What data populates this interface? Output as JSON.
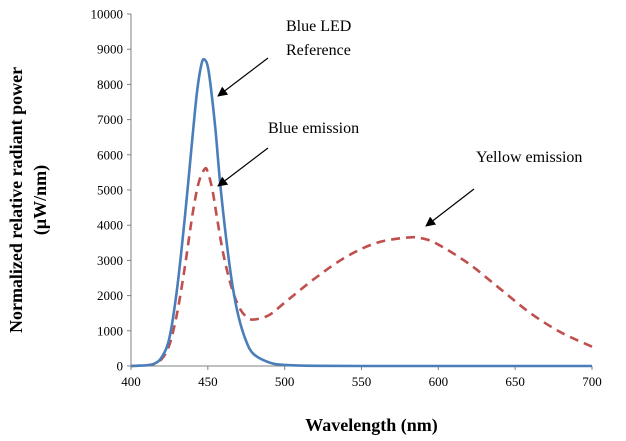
{
  "chart_data": {
    "type": "line",
    "title": "",
    "xlabel": "Wavelength  (nm)",
    "ylabel_line1": "Normalized  relative  radiant power",
    "ylabel_line2": "(μW/nm)",
    "xlim": [
      400,
      700
    ],
    "ylim": [
      0,
      10000
    ],
    "xticks": [
      400,
      450,
      500,
      550,
      600,
      650,
      700
    ],
    "yticks": [
      0,
      1000,
      2000,
      3000,
      4000,
      5000,
      6000,
      7000,
      8000,
      9000,
      10000
    ],
    "ytick_labels": [
      "0",
      "1000",
      "2000",
      "3000",
      "4000",
      "5000",
      "6000",
      "7000",
      "8000",
      "9000",
      "10000"
    ],
    "grid": false,
    "series": [
      {
        "name": "Blue LED Reference",
        "color": "#4a7ebb",
        "style": "solid",
        "x": [
          400,
          410,
          415,
          420,
          425,
          430,
          435,
          440,
          443,
          446,
          448,
          450,
          452,
          455,
          458,
          462,
          466,
          470,
          475,
          480,
          490,
          500,
          520,
          550,
          600,
          700
        ],
        "y": [
          0,
          20,
          60,
          250,
          800,
          2200,
          4200,
          6500,
          7800,
          8600,
          8700,
          8500,
          7900,
          6700,
          5200,
          3600,
          2300,
          1400,
          700,
          330,
          100,
          30,
          5,
          0,
          0,
          0
        ]
      },
      {
        "name": "Blue emission / Yellow emission",
        "color": "#c0504d",
        "style": "dashed",
        "x": [
          400,
          410,
          415,
          420,
          425,
          430,
          435,
          440,
          444,
          448,
          450,
          453,
          456,
          460,
          465,
          470,
          475,
          480,
          490,
          500,
          520,
          540,
          560,
          580,
          590,
          600,
          620,
          640,
          660,
          680,
          700
        ],
        "y": [
          0,
          20,
          60,
          200,
          600,
          1500,
          2800,
          4300,
          5200,
          5600,
          5500,
          5000,
          4200,
          3200,
          2300,
          1700,
          1400,
          1320,
          1450,
          1800,
          2500,
          3100,
          3500,
          3650,
          3620,
          3450,
          2900,
          2200,
          1500,
          950,
          550
        ]
      }
    ],
    "annotations": [
      {
        "lines": [
          "Blue LED",
          "Reference"
        ]
      },
      {
        "lines": [
          "Blue emission"
        ]
      },
      {
        "lines": [
          "Yellow emission"
        ]
      }
    ]
  }
}
